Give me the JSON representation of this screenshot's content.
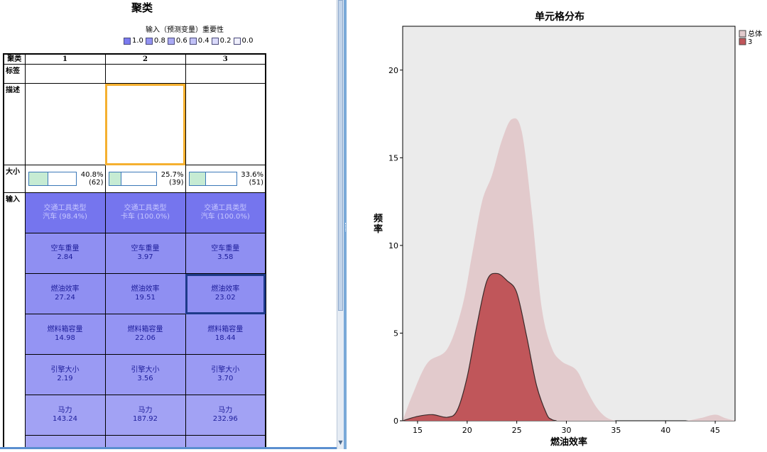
{
  "cluster_view": {
    "title": "聚类",
    "importance_legend": {
      "title": "输入（预测变量）重要性",
      "items": [
        {
          "label": "1.0",
          "color": "#7b7bf0"
        },
        {
          "label": "0.8",
          "color": "#9393f2"
        },
        {
          "label": "0.6",
          "color": "#aaaaf4"
        },
        {
          "label": "0.4",
          "color": "#c2c2f7"
        },
        {
          "label": "0.2",
          "color": "#dadafa"
        },
        {
          "label": "0.0",
          "color": "#f0f0fd"
        }
      ]
    },
    "header": {
      "corner": "聚类",
      "clusters": [
        "1",
        "2",
        "3"
      ]
    },
    "row_labels": {
      "label": "标签",
      "description": "描述",
      "size": "大小",
      "inputs": "输入"
    },
    "sizes": [
      {
        "percent": "40.8%",
        "count": "(62)",
        "fraction": 0.408
      },
      {
        "percent": "25.7%",
        "count": "(39)",
        "fraction": 0.257
      },
      {
        "percent": "33.6%",
        "count": "(51)",
        "fraction": 0.336
      }
    ],
    "inputs": [
      {
        "cells": [
          {
            "name": "交通工具类型",
            "value": "汽车 (98.4%)"
          },
          {
            "name": "交通工具类型",
            "value": "卡车 (100.0%)"
          },
          {
            "name": "交通工具类型",
            "value": "汽车 (100.0%)"
          }
        ],
        "color": "#7575ee"
      },
      {
        "cells": [
          {
            "name": "空车重量",
            "value": "2.84"
          },
          {
            "name": "空车重量",
            "value": "3.97"
          },
          {
            "name": "空车重量",
            "value": "3.58"
          }
        ],
        "color": "#8f8ff2"
      },
      {
        "cells": [
          {
            "name": "燃油效率",
            "value": "27.24"
          },
          {
            "name": "燃油效率",
            "value": "19.51"
          },
          {
            "name": "燃油效率",
            "value": "23.02"
          }
        ],
        "color": "#8f8ff2"
      },
      {
        "cells": [
          {
            "name": "燃料箱容量",
            "value": "14.98"
          },
          {
            "name": "燃料箱容量",
            "value": "22.06"
          },
          {
            "name": "燃料箱容量",
            "value": "18.44"
          }
        ],
        "color": "#9494f3"
      },
      {
        "cells": [
          {
            "name": "引擎大小",
            "value": "2.19"
          },
          {
            "name": "引擎大小",
            "value": "3.56"
          },
          {
            "name": "引擎大小",
            "value": "3.70"
          }
        ],
        "color": "#9a9af3"
      },
      {
        "cells": [
          {
            "name": "马力",
            "value": "143.24"
          },
          {
            "name": "马力",
            "value": "187.92"
          },
          {
            "name": "马力",
            "value": "232.96"
          }
        ],
        "color": "#a2a2f4"
      },
      {
        "cells": [
          {
            "name": "",
            "value": ""
          },
          {
            "name": "",
            "value": ""
          },
          {
            "name": "",
            "value": ""
          }
        ],
        "color": "#a6a6f5"
      }
    ]
  },
  "chart_data": {
    "type": "area",
    "title": "单元格分布",
    "xlabel": "燃油效率",
    "ylabel": "频率",
    "xlim": [
      13.5,
      47
    ],
    "ylim": [
      0,
      22.5
    ],
    "xticks": [
      15,
      20,
      25,
      30,
      35,
      40,
      45
    ],
    "yticks": [
      0,
      5,
      10,
      15,
      20
    ],
    "legend_position": "top-right",
    "series": [
      {
        "name": "总体",
        "color": "#e2cacc",
        "x": [
          13.5,
          14.5,
          16,
          18,
          19.5,
          20.5,
          21.5,
          22.5,
          23.5,
          24.5,
          25.5,
          26.5,
          27.5,
          28.5,
          29.5,
          31,
          32,
          33,
          34,
          35,
          36,
          38,
          40,
          42,
          43.5,
          45,
          46,
          47
        ],
        "y": [
          0,
          1.5,
          3.3,
          4.1,
          6.5,
          9.5,
          12.5,
          14.0,
          16.0,
          17.2,
          16.5,
          12.0,
          6.5,
          4.2,
          3.4,
          2.9,
          1.8,
          0.8,
          0.2,
          0,
          0,
          0,
          0,
          0,
          0.15,
          0.35,
          0.15,
          0
        ]
      },
      {
        "name": "3",
        "color": "#c0565a",
        "x": [
          13.5,
          15,
          16.5,
          18,
          19,
          20,
          21,
          22,
          23,
          24,
          25,
          26,
          27,
          28,
          28.5,
          29
        ],
        "y": [
          0,
          0.25,
          0.35,
          0.2,
          0.6,
          2.5,
          5.5,
          8.0,
          8.4,
          8.0,
          7.3,
          4.8,
          2.0,
          0.4,
          0.08,
          0
        ]
      }
    ]
  }
}
